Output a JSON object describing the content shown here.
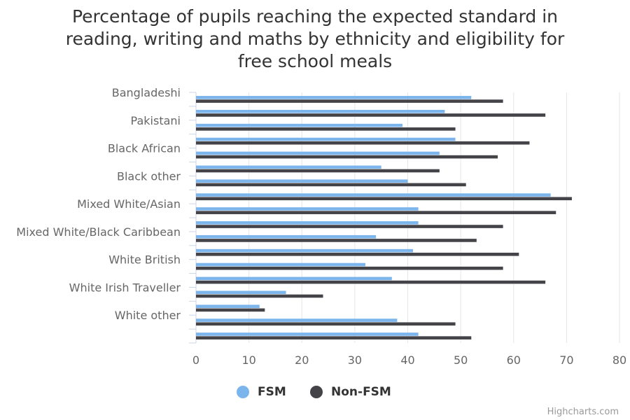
{
  "chart_data": {
    "type": "bar",
    "orientation": "horizontal",
    "title": "Percentage of pupils reaching the expected standard in\nreading, writing and maths by ethnicity and eligibility for\nfree school meals",
    "categories": [
      "Bangladeshi",
      "",
      "Pakistani",
      "",
      "Black African",
      "",
      "Black other",
      "",
      "Mixed White/Asian",
      "",
      "Mixed White/Black Caribbean",
      "",
      "White British",
      "",
      "White Irish Traveller",
      "",
      "White other",
      ""
    ],
    "series": [
      {
        "name": "FSM",
        "color": "#7cb5ec",
        "values": [
          52,
          47,
          39,
          49,
          46,
          35,
          40,
          67,
          42,
          42,
          34,
          41,
          32,
          37,
          17,
          12,
          38,
          42
        ]
      },
      {
        "name": "Non-FSM",
        "color": "#434348",
        "values": [
          58,
          66,
          49,
          63,
          57,
          46,
          51,
          71,
          68,
          58,
          53,
          61,
          58,
          66,
          24,
          13,
          49,
          52
        ]
      }
    ],
    "xlim": [
      0,
      80
    ],
    "ticks": [
      0,
      10,
      20,
      30,
      40,
      50,
      60,
      70,
      80
    ],
    "grid": true,
    "legend_position": "bottom-center"
  },
  "credits": "Highcharts.com"
}
